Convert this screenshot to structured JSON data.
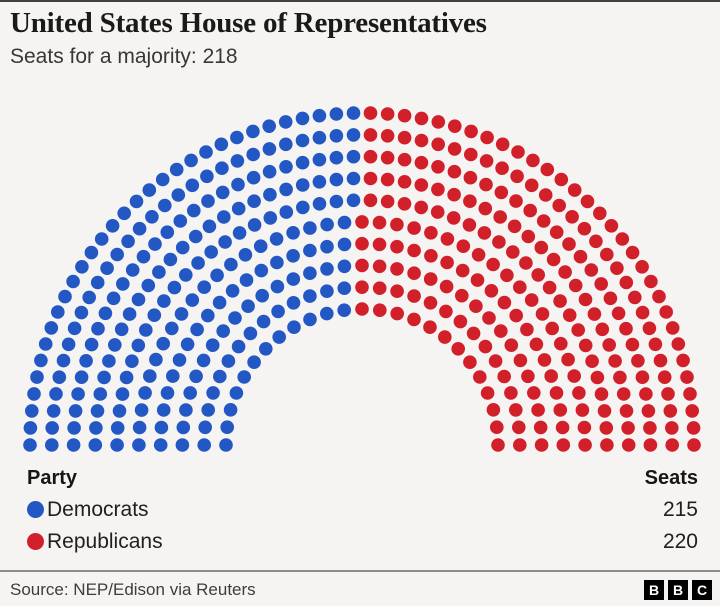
{
  "header": {
    "title": "United States House of Representatives",
    "subtitle": "Seats for a majority: 218"
  },
  "chart_data": {
    "type": "parliament",
    "title": "United States House of Representatives",
    "subtitle": "Seats for a majority: 218",
    "total_seats": 435,
    "majority_seats": 218,
    "rings": 10,
    "categories": [
      "Democrats",
      "Republicans"
    ],
    "values": [
      215,
      220
    ],
    "parties": [
      {
        "name": "Democrats",
        "seats": 215,
        "color": "#2257c4"
      },
      {
        "name": "Republicans",
        "seats": 220,
        "color": "#d2202b"
      }
    ],
    "legend_headers": {
      "party": "Party",
      "seats": "Seats"
    },
    "background_color": "#f5f4f2"
  },
  "footer": {
    "source": "Source: NEP/Edison via Reuters",
    "logo_letters": [
      "B",
      "B",
      "C"
    ]
  }
}
